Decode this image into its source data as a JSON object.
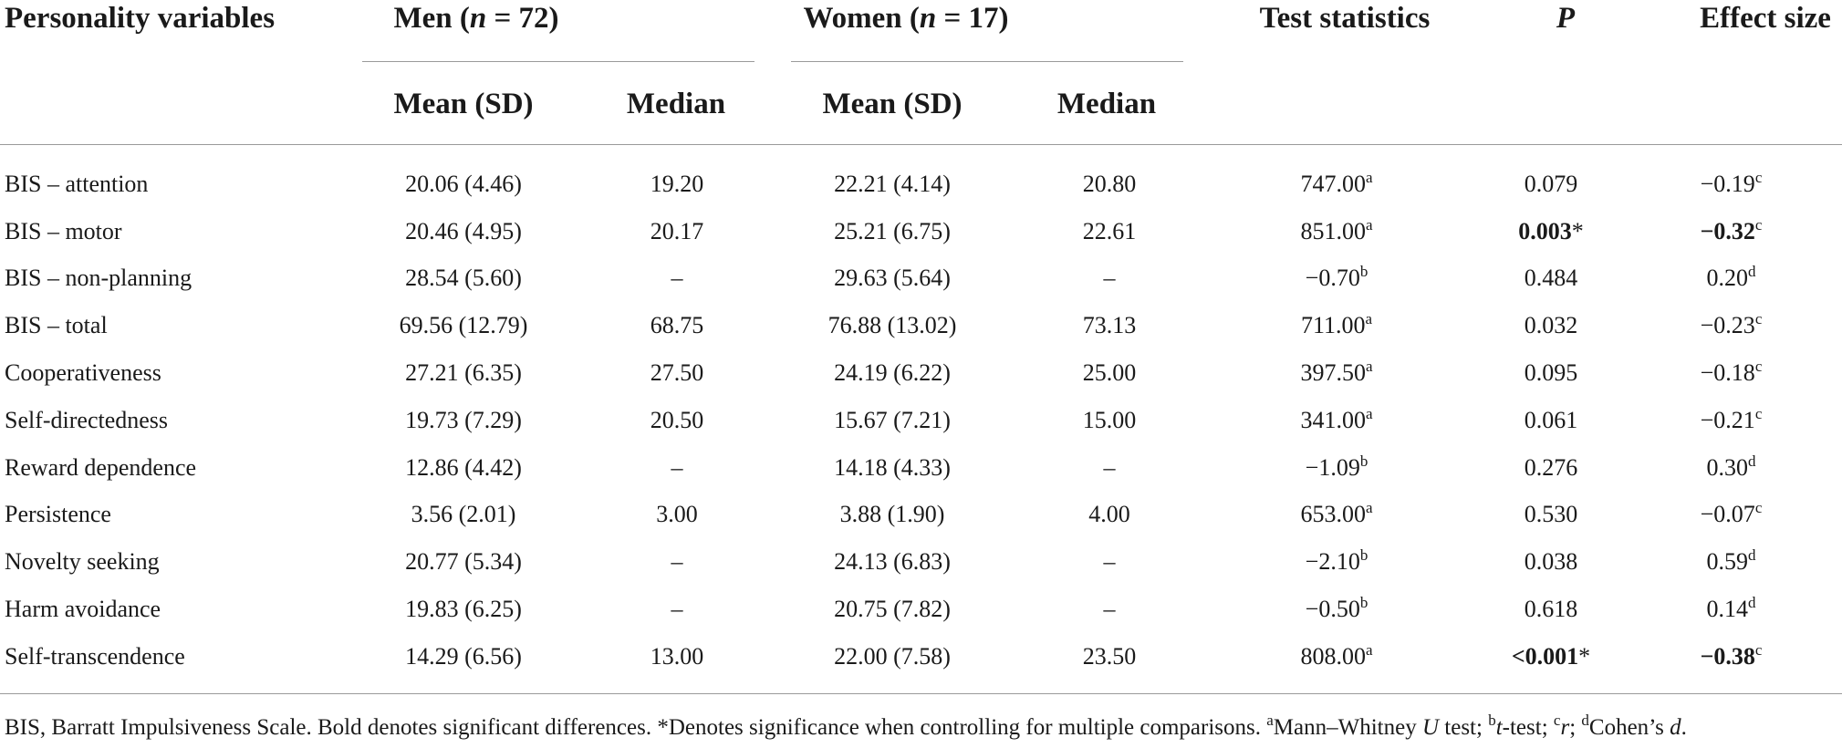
{
  "header": {
    "personality_variables": "Personality variables",
    "men": "Men (",
    "n": "n",
    "men_count": " = 72)",
    "women": "Women (",
    "women_count": " = 17)",
    "test_statistics": "Test statistics",
    "p": "P",
    "effect_size": "Effect size",
    "mean_sd": "Mean (SD)",
    "median": "Median"
  },
  "rows": [
    {
      "label": "BIS – attention",
      "men_mean": "20.06 (4.46)",
      "men_median": "19.20",
      "women_mean": "22.21 (4.14)",
      "women_median": "20.80",
      "test": "747.00",
      "test_sup": "a",
      "p_prefix": "",
      "p": "0.079",
      "p_bold": false,
      "p_star": "",
      "effect": "−0.19",
      "effect_bold": false,
      "effect_sup": "c"
    },
    {
      "label": "BIS – motor",
      "men_mean": "20.46 (4.95)",
      "men_median": "20.17",
      "women_mean": "25.21 (6.75)",
      "women_median": "22.61",
      "test": "851.00",
      "test_sup": "a",
      "p_prefix": "",
      "p": "0.003",
      "p_bold": true,
      "p_star": "*",
      "effect": "−0.32",
      "effect_bold": true,
      "effect_sup": "c"
    },
    {
      "label": "BIS – non-planning",
      "men_mean": "28.54 (5.60)",
      "men_median": "–",
      "women_mean": "29.63 (5.64)",
      "women_median": "–",
      "test": "−0.70",
      "test_sup": "b",
      "p_prefix": "",
      "p": "0.484",
      "p_bold": false,
      "p_star": "",
      "effect": "0.20",
      "effect_bold": false,
      "effect_sup": "d"
    },
    {
      "label": "BIS – total",
      "men_mean": "69.56 (12.79)",
      "men_median": "68.75",
      "women_mean": "76.88 (13.02)",
      "women_median": "73.13",
      "test": "711.00",
      "test_sup": "a",
      "p_prefix": "",
      "p": "0.032",
      "p_bold": false,
      "p_star": "",
      "effect": "−0.23",
      "effect_bold": false,
      "effect_sup": "c"
    },
    {
      "label": "Cooperativeness",
      "men_mean": "27.21 (6.35)",
      "men_median": "27.50",
      "women_mean": "24.19 (6.22)",
      "women_median": "25.00",
      "test": "397.50",
      "test_sup": "a",
      "p_prefix": "",
      "p": "0.095",
      "p_bold": false,
      "p_star": "",
      "effect": "−0.18",
      "effect_bold": false,
      "effect_sup": "c"
    },
    {
      "label": "Self-directedness",
      "men_mean": "19.73 (7.29)",
      "men_median": "20.50",
      "women_mean": "15.67 (7.21)",
      "women_median": "15.00",
      "test": "341.00",
      "test_sup": "a",
      "p_prefix": "",
      "p": "0.061",
      "p_bold": false,
      "p_star": "",
      "effect": "−0.21",
      "effect_bold": false,
      "effect_sup": "c"
    },
    {
      "label": "Reward dependence",
      "men_mean": "12.86 (4.42)",
      "men_median": "–",
      "women_mean": "14.18 (4.33)",
      "women_median": "–",
      "test": "−1.09",
      "test_sup": "b",
      "p_prefix": "",
      "p": "0.276",
      "p_bold": false,
      "p_star": "",
      "effect": "0.30",
      "effect_bold": false,
      "effect_sup": "d"
    },
    {
      "label": "Persistence",
      "men_mean": "3.56 (2.01)",
      "men_median": "3.00",
      "women_mean": "3.88 (1.90)",
      "women_median": "4.00",
      "test": "653.00",
      "test_sup": "a",
      "p_prefix": "",
      "p": "0.530",
      "p_bold": false,
      "p_star": "",
      "effect": "−0.07",
      "effect_bold": false,
      "effect_sup": "c"
    },
    {
      "label": "Novelty seeking",
      "men_mean": "20.77 (5.34)",
      "men_median": "–",
      "women_mean": "24.13 (6.83)",
      "women_median": "–",
      "test": "−2.10",
      "test_sup": "b",
      "p_prefix": "",
      "p": "0.038",
      "p_bold": false,
      "p_star": "",
      "effect": "0.59",
      "effect_bold": false,
      "effect_sup": "d"
    },
    {
      "label": "Harm avoidance",
      "men_mean": "19.83 (6.25)",
      "men_median": "–",
      "women_mean": "20.75 (7.82)",
      "women_median": "–",
      "test": "−0.50",
      "test_sup": "b",
      "p_prefix": "",
      "p": "0.618",
      "p_bold": false,
      "p_star": "",
      "effect": "0.14",
      "effect_bold": false,
      "effect_sup": "d"
    },
    {
      "label": "Self-transcendence",
      "men_mean": "14.29 (6.56)",
      "men_median": "13.00",
      "women_mean": "22.00 (7.58)",
      "women_median": "23.50",
      "test": "808.00",
      "test_sup": "a",
      "p_prefix": "<",
      "p": "0.001",
      "p_bold": true,
      "p_star": "*",
      "effect": "−0.38",
      "effect_bold": true,
      "effect_sup": "c"
    }
  ],
  "footnote": {
    "part1": "BIS, Barratt Impulsiveness Scale. Bold denotes significant differences. *Denotes significance when controlling for multiple comparisons. ",
    "sup_a": "a",
    "part2": "Mann–Whitney ",
    "u": "U",
    "part3": " test; ",
    "sup_b": "b",
    "t": "t",
    "part4": "-test; ",
    "sup_c": "c",
    "r": "r",
    "part5": "; ",
    "sup_d": "d",
    "part6": "Cohen’s ",
    "d": "d",
    "part7": "."
  }
}
